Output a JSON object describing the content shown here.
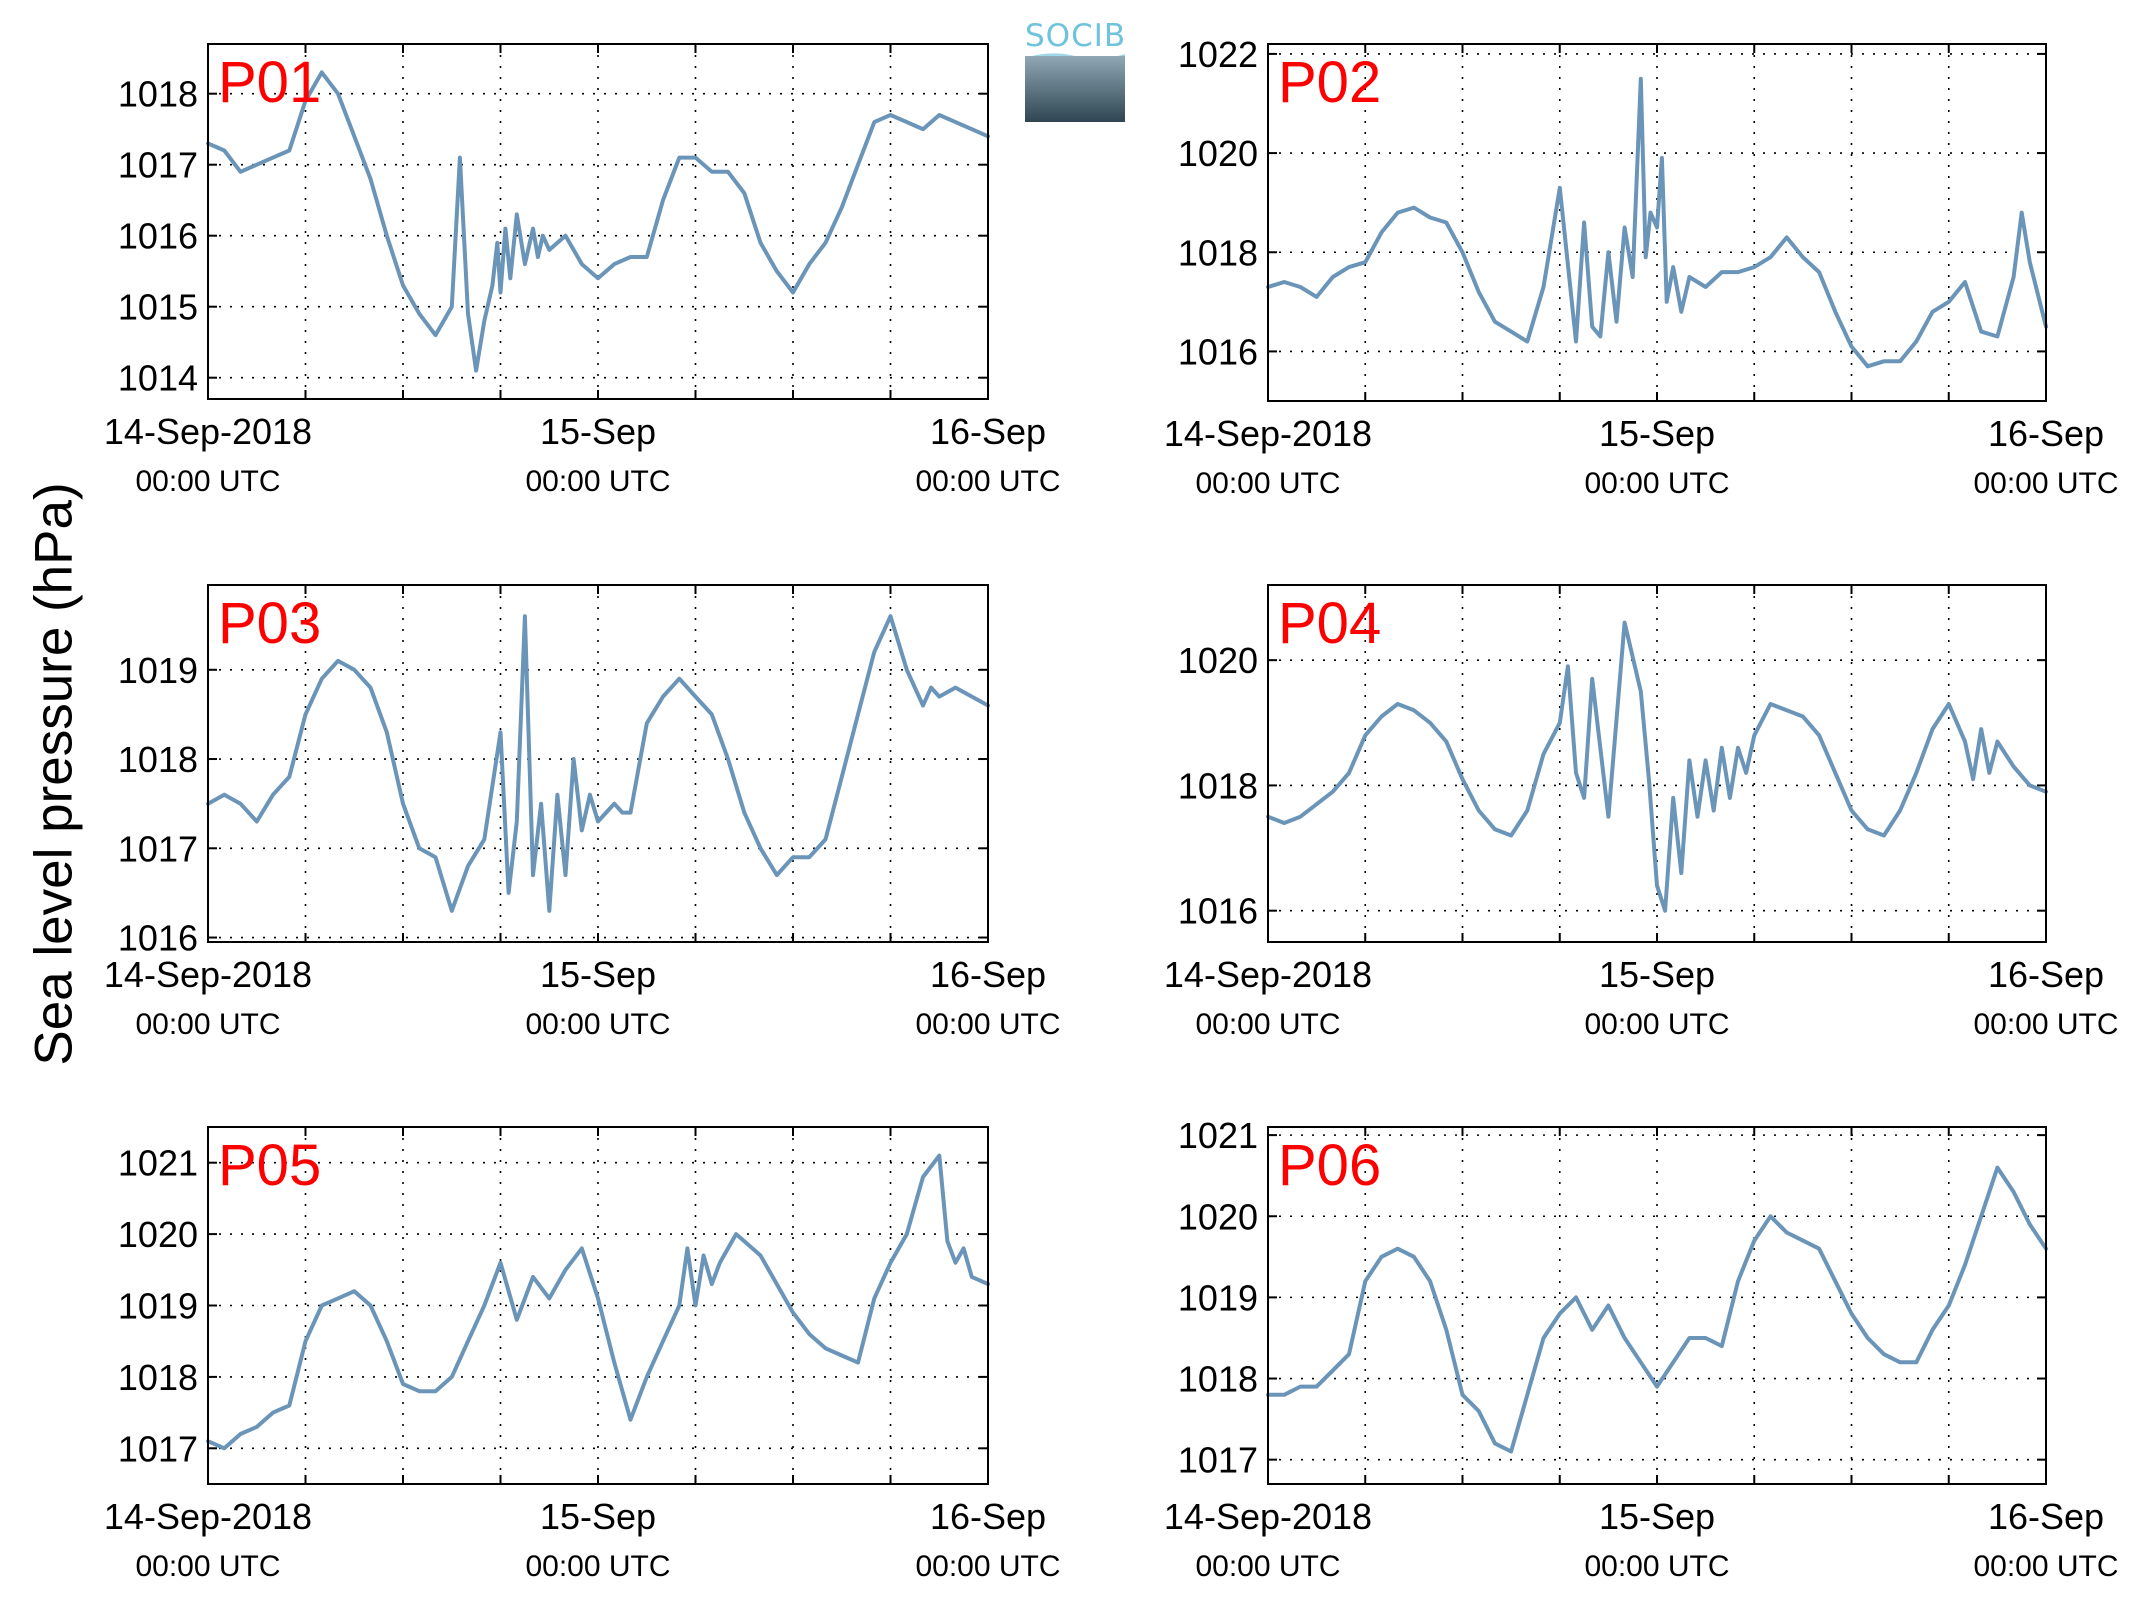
{
  "figure": {
    "ylabel": "Sea level pressure (hPa)",
    "logo_text": "SOCIB",
    "line_color": "#6b95b8",
    "panel_label_color": "#ff0000"
  },
  "chart_data": [
    {
      "type": "line",
      "panel_label": "P01",
      "xlabels": [
        [
          "14-Sep-2018",
          "00:00 UTC"
        ],
        [
          "15-Sep",
          "00:00 UTC"
        ],
        [
          "16-Sep",
          "00:00 UTC"
        ]
      ],
      "xlim": [
        0,
        48
      ],
      "ylim": [
        1013.7,
        1018.7
      ],
      "yticks": [
        1014,
        1015,
        1016,
        1017,
        1018
      ],
      "grid": true,
      "x": [
        0,
        1,
        2,
        3,
        4,
        5,
        6,
        7,
        8,
        9,
        10,
        11,
        12,
        13,
        14,
        15,
        15.5,
        16,
        16.5,
        17,
        17.5,
        17.8,
        18,
        18.3,
        18.6,
        19,
        19.5,
        20,
        20.3,
        20.6,
        21,
        21.5,
        22,
        23,
        24,
        25,
        26,
        27,
        28,
        29,
        30,
        31,
        32,
        33,
        34,
        35,
        36,
        37,
        38,
        39,
        40,
        41,
        42,
        43,
        44,
        45,
        46,
        47,
        48
      ],
      "y": [
        1017.3,
        1017.2,
        1016.9,
        1017.0,
        1017.1,
        1017.2,
        1017.9,
        1018.3,
        1018.0,
        1017.4,
        1016.8,
        1016.0,
        1015.3,
        1014.9,
        1014.6,
        1015.0,
        1017.1,
        1014.9,
        1014.1,
        1014.8,
        1015.3,
        1015.9,
        1015.2,
        1016.1,
        1015.4,
        1016.3,
        1015.6,
        1016.1,
        1015.7,
        1016.0,
        1015.8,
        1015.9,
        1016.0,
        1015.6,
        1015.4,
        1015.6,
        1015.7,
        1015.7,
        1016.5,
        1017.1,
        1017.1,
        1016.9,
        1016.9,
        1016.6,
        1015.9,
        1015.5,
        1015.2,
        1015.6,
        1015.9,
        1016.4,
        1017.0,
        1017.6,
        1017.7,
        1017.6,
        1017.5,
        1017.7,
        1017.6,
        1017.5,
        1017.4
      ]
    },
    {
      "type": "line",
      "panel_label": "P02",
      "xlabels": [
        [
          "14-Sep-2018",
          "00:00 UTC"
        ],
        [
          "15-Sep",
          "00:00 UTC"
        ],
        [
          "16-Sep",
          "00:00 UTC"
        ]
      ],
      "xlim": [
        0,
        48
      ],
      "ylim": [
        1015.0,
        1022.2
      ],
      "yticks": [
        1016,
        1018,
        1020,
        1022
      ],
      "grid": true,
      "x": [
        0,
        1,
        2,
        3,
        4,
        5,
        6,
        7,
        8,
        9,
        10,
        11,
        12,
        13,
        14,
        15,
        16,
        17,
        18,
        19,
        19.5,
        20,
        20.5,
        21,
        21.5,
        22,
        22.5,
        23,
        23.3,
        23.6,
        24,
        24.3,
        24.6,
        25,
        25.5,
        26,
        27,
        28,
        29,
        30,
        31,
        32,
        33,
        34,
        35,
        36,
        37,
        38,
        39,
        40,
        41,
        42,
        43,
        44,
        45,
        46,
        46.5,
        47,
        48
      ],
      "y": [
        1017.3,
        1017.4,
        1017.3,
        1017.1,
        1017.5,
        1017.7,
        1017.8,
        1018.4,
        1018.8,
        1018.9,
        1018.7,
        1018.6,
        1018.0,
        1017.2,
        1016.6,
        1016.4,
        1016.2,
        1017.3,
        1019.3,
        1016.2,
        1018.6,
        1016.5,
        1016.3,
        1018.0,
        1016.6,
        1018.5,
        1017.5,
        1021.5,
        1017.9,
        1018.8,
        1018.5,
        1019.9,
        1017.0,
        1017.7,
        1016.8,
        1017.5,
        1017.3,
        1017.6,
        1017.6,
        1017.7,
        1017.9,
        1018.3,
        1017.9,
        1017.6,
        1016.8,
        1016.1,
        1015.7,
        1015.8,
        1015.8,
        1016.2,
        1016.8,
        1017.0,
        1017.4,
        1016.4,
        1016.3,
        1017.5,
        1018.8,
        1017.8,
        1016.5
      ]
    },
    {
      "type": "line",
      "panel_label": "P03",
      "xlabels": [
        [
          "14-Sep-2018",
          "00:00 UTC"
        ],
        [
          "15-Sep",
          "00:00 UTC"
        ],
        [
          "16-Sep",
          "00:00 UTC"
        ]
      ],
      "xlim": [
        0,
        48
      ],
      "ylim": [
        1015.95,
        1019.95
      ],
      "yticks": [
        1016,
        1017,
        1018,
        1019
      ],
      "grid": true,
      "x": [
        0,
        1,
        2,
        3,
        4,
        5,
        6,
        7,
        8,
        9,
        10,
        11,
        12,
        13,
        14,
        15,
        16,
        17,
        18,
        18.5,
        19,
        19.5,
        20,
        20.5,
        21,
        21.5,
        22,
        22.5,
        23,
        23.5,
        24,
        24.5,
        25,
        25.5,
        26,
        27,
        28,
        29,
        30,
        31,
        32,
        33,
        34,
        35,
        36,
        37,
        38,
        39,
        40,
        41,
        42,
        43,
        44,
        44.5,
        45,
        46,
        47,
        48
      ],
      "y": [
        1017.5,
        1017.6,
        1017.5,
        1017.3,
        1017.6,
        1017.8,
        1018.5,
        1018.9,
        1019.1,
        1019.0,
        1018.8,
        1018.3,
        1017.5,
        1017.0,
        1016.9,
        1016.3,
        1016.8,
        1017.1,
        1018.3,
        1016.5,
        1017.3,
        1019.6,
        1016.7,
        1017.5,
        1016.3,
        1017.6,
        1016.7,
        1018.0,
        1017.2,
        1017.6,
        1017.3,
        1017.4,
        1017.5,
        1017.4,
        1017.4,
        1018.4,
        1018.7,
        1018.9,
        1018.7,
        1018.5,
        1018.0,
        1017.4,
        1017.0,
        1016.7,
        1016.9,
        1016.9,
        1017.1,
        1017.8,
        1018.5,
        1019.2,
        1019.6,
        1019.0,
        1018.6,
        1018.8,
        1018.7,
        1018.8,
        1018.7,
        1018.6
      ]
    },
    {
      "type": "line",
      "panel_label": "P04",
      "xlabels": [
        [
          "14-Sep-2018",
          "00:00 UTC"
        ],
        [
          "15-Sep",
          "00:00 UTC"
        ],
        [
          "16-Sep",
          "00:00 UTC"
        ]
      ],
      "xlim": [
        0,
        48
      ],
      "ylim": [
        1015.5,
        1021.2
      ],
      "yticks": [
        1016,
        1018,
        1020
      ],
      "grid": true,
      "x": [
        0,
        1,
        2,
        3,
        4,
        5,
        6,
        7,
        8,
        9,
        10,
        11,
        12,
        13,
        14,
        15,
        16,
        17,
        18,
        18.5,
        19,
        19.5,
        20,
        21,
        22,
        23,
        23.5,
        24,
        24.5,
        25,
        25.5,
        26,
        26.5,
        27,
        27.5,
        28,
        28.5,
        29,
        29.5,
        30,
        31,
        32,
        33,
        34,
        35,
        36,
        37,
        38,
        39,
        40,
        41,
        42,
        43,
        43.5,
        44,
        44.5,
        45,
        46,
        47,
        48
      ],
      "y": [
        1017.5,
        1017.4,
        1017.5,
        1017.7,
        1017.9,
        1018.2,
        1018.8,
        1019.1,
        1019.3,
        1019.2,
        1019.0,
        1018.7,
        1018.1,
        1017.6,
        1017.3,
        1017.2,
        1017.6,
        1018.5,
        1019.0,
        1019.9,
        1018.2,
        1017.8,
        1019.7,
        1017.5,
        1020.6,
        1019.5,
        1018.1,
        1016.4,
        1016.0,
        1017.8,
        1016.6,
        1018.4,
        1017.5,
        1018.4,
        1017.6,
        1018.6,
        1017.8,
        1018.6,
        1018.2,
        1018.8,
        1019.3,
        1019.2,
        1019.1,
        1018.8,
        1018.2,
        1017.6,
        1017.3,
        1017.2,
        1017.6,
        1018.2,
        1018.9,
        1019.3,
        1018.7,
        1018.1,
        1018.9,
        1018.2,
        1018.7,
        1018.3,
        1018.0,
        1017.9
      ]
    },
    {
      "type": "line",
      "panel_label": "P05",
      "xlabels": [
        [
          "14-Sep-2018",
          "00:00 UTC"
        ],
        [
          "15-Sep",
          "00:00 UTC"
        ],
        [
          "16-Sep",
          "00:00 UTC"
        ]
      ],
      "xlim": [
        0,
        48
      ],
      "ylim": [
        1016.5,
        1021.5
      ],
      "yticks": [
        1017,
        1018,
        1019,
        1020,
        1021
      ],
      "grid": true,
      "x": [
        0,
        1,
        2,
        3,
        4,
        5,
        6,
        7,
        8,
        9,
        10,
        11,
        12,
        13,
        14,
        15,
        16,
        17,
        18,
        19,
        20,
        21,
        22,
        23,
        24,
        25,
        26,
        27,
        28,
        29,
        29.5,
        30,
        30.5,
        31,
        31.5,
        32,
        32.5,
        33,
        34,
        35,
        36,
        37,
        38,
        39,
        40,
        41,
        42,
        43,
        44,
        45,
        45.5,
        46,
        46.5,
        47,
        48
      ],
      "y": [
        1017.1,
        1017.0,
        1017.2,
        1017.3,
        1017.5,
        1017.6,
        1018.5,
        1019.0,
        1019.1,
        1019.2,
        1019.0,
        1018.5,
        1017.9,
        1017.8,
        1017.8,
        1018.0,
        1018.5,
        1019.0,
        1019.6,
        1018.8,
        1019.4,
        1019.1,
        1019.5,
        1019.8,
        1019.1,
        1018.2,
        1017.4,
        1018.0,
        1018.5,
        1019.0,
        1019.8,
        1019.0,
        1019.7,
        1019.3,
        1019.6,
        1019.8,
        1020.0,
        1019.9,
        1019.7,
        1019.3,
        1018.9,
        1018.6,
        1018.4,
        1018.3,
        1018.2,
        1019.1,
        1019.6,
        1020.0,
        1020.8,
        1021.1,
        1019.9,
        1019.6,
        1019.8,
        1019.4,
        1019.3
      ]
    },
    {
      "type": "line",
      "panel_label": "P06",
      "xlabels": [
        [
          "14-Sep-2018",
          "00:00 UTC"
        ],
        [
          "15-Sep",
          "00:00 UTC"
        ],
        [
          "16-Sep",
          "00:00 UTC"
        ]
      ],
      "xlim": [
        0,
        48
      ],
      "ylim": [
        1016.7,
        1021.1
      ],
      "yticks": [
        1017,
        1018,
        1019,
        1020,
        1021
      ],
      "grid": true,
      "x": [
        0,
        1,
        2,
        3,
        4,
        5,
        6,
        7,
        8,
        9,
        10,
        11,
        12,
        13,
        14,
        15,
        16,
        17,
        18,
        19,
        20,
        21,
        22,
        23,
        24,
        25,
        26,
        27,
        28,
        29,
        30,
        31,
        32,
        33,
        34,
        35,
        36,
        37,
        38,
        39,
        40,
        41,
        42,
        43,
        44,
        45,
        46,
        47,
        48
      ],
      "y": [
        1017.8,
        1017.8,
        1017.9,
        1017.9,
        1018.1,
        1018.3,
        1019.2,
        1019.5,
        1019.6,
        1019.5,
        1019.2,
        1018.6,
        1017.8,
        1017.6,
        1017.2,
        1017.1,
        1017.8,
        1018.5,
        1018.8,
        1019.0,
        1018.6,
        1018.9,
        1018.5,
        1018.2,
        1017.9,
        1018.2,
        1018.5,
        1018.5,
        1018.4,
        1019.2,
        1019.7,
        1020.0,
        1019.8,
        1019.7,
        1019.6,
        1019.2,
        1018.8,
        1018.5,
        1018.3,
        1018.2,
        1018.2,
        1018.6,
        1018.9,
        1019.4,
        1020.0,
        1020.6,
        1020.3,
        1019.9,
        1019.6
      ]
    }
  ]
}
